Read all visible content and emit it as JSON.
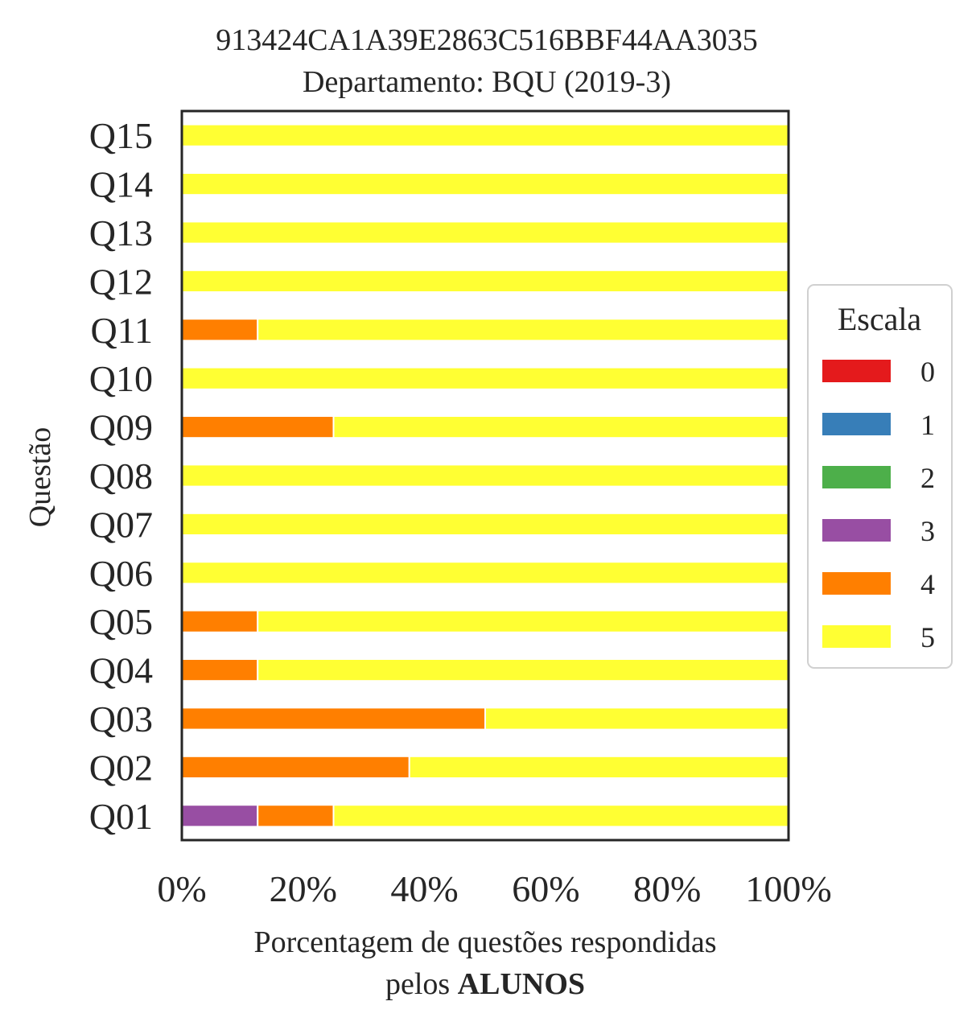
{
  "chart_data": {
    "type": "bar",
    "orientation": "horizontal",
    "stacked": true,
    "title_line1": "913424CA1A39E2863C516BBF44AA3035",
    "title_line2": "Departamento: BQU (2019-3)",
    "ylabel": "Questão",
    "xlabel_line1": "Porcentagem de questões respondidas",
    "xlabel_line2_prefix": "pelos ",
    "xlabel_line2_bold": "ALUNOS",
    "xlim": [
      0,
      100
    ],
    "xticks": [
      "0%",
      "20%",
      "40%",
      "60%",
      "80%",
      "100%"
    ],
    "categories": [
      "Q01",
      "Q02",
      "Q03",
      "Q04",
      "Q05",
      "Q06",
      "Q07",
      "Q08",
      "Q09",
      "Q10",
      "Q11",
      "Q12",
      "Q13",
      "Q14",
      "Q15"
    ],
    "series": [
      {
        "name": "0",
        "color": "#e41a1c",
        "values": [
          0,
          0,
          0,
          0,
          0,
          0,
          0,
          0,
          0,
          0,
          0,
          0,
          0,
          0,
          0
        ]
      },
      {
        "name": "1",
        "color": "#377eb8",
        "values": [
          0,
          0,
          0,
          0,
          0,
          0,
          0,
          0,
          0,
          0,
          0,
          0,
          0,
          0,
          0
        ]
      },
      {
        "name": "2",
        "color": "#4daf4a",
        "values": [
          0,
          0,
          0,
          0,
          0,
          0,
          0,
          0,
          0,
          0,
          0,
          0,
          0,
          0,
          0
        ]
      },
      {
        "name": "3",
        "color": "#984ea3",
        "values": [
          12.5,
          0,
          0,
          0,
          0,
          0,
          0,
          0,
          0,
          0,
          0,
          0,
          0,
          0,
          0
        ]
      },
      {
        "name": "4",
        "color": "#ff7f00",
        "values": [
          12.5,
          37.5,
          50,
          12.5,
          12.5,
          0,
          0,
          0,
          25,
          0,
          12.5,
          0,
          0,
          0,
          0
        ]
      },
      {
        "name": "5",
        "color": "#ffff33",
        "values": [
          75,
          62.5,
          50,
          87.5,
          87.5,
          100,
          100,
          100,
          75,
          100,
          87.5,
          100,
          100,
          100,
          100
        ]
      }
    ],
    "legend": {
      "title": "Escala",
      "position": "center-right"
    },
    "grid": false
  }
}
